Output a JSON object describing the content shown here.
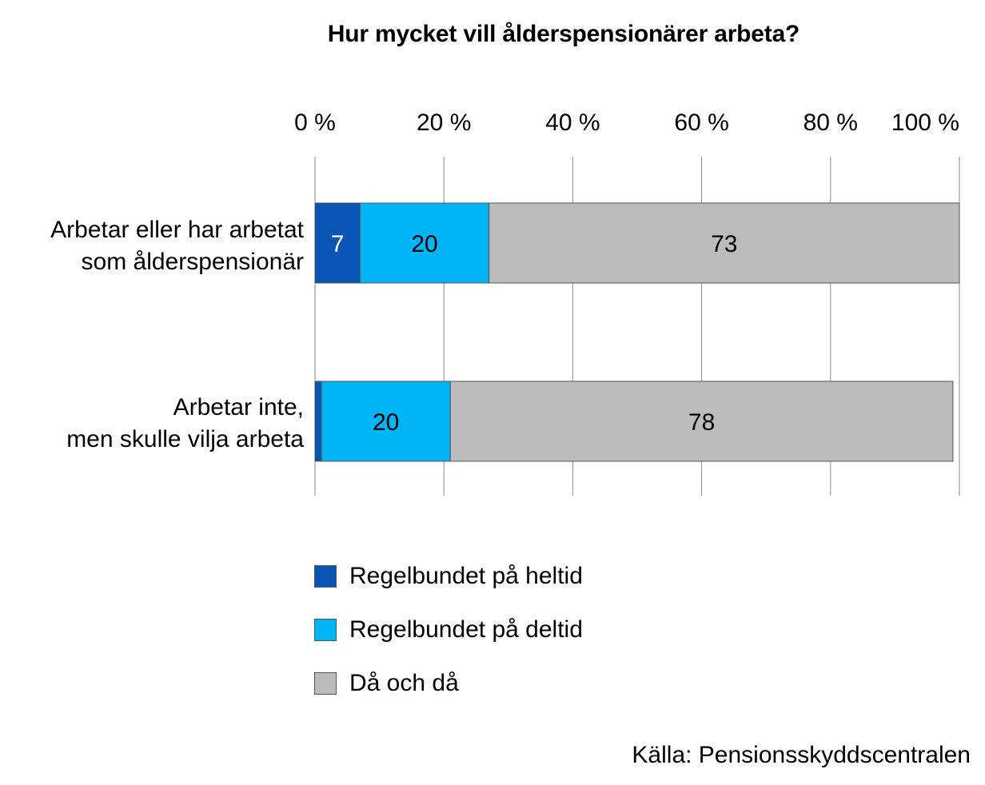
{
  "chart_data": {
    "type": "bar",
    "orientation": "horizontal",
    "stacked": true,
    "title": "Hur mycket vill ålderspensionärer arbeta?",
    "categories": [
      [
        "Arbetar eller har arbetat",
        "som ålderspensionär"
      ],
      [
        "Arbetar inte,",
        "men skulle vilja arbeta"
      ]
    ],
    "series": [
      {
        "name": "Regelbundet på heltid",
        "color": "#0a55b4",
        "values": [
          7,
          1
        ],
        "labels": [
          "7",
          ""
        ]
      },
      {
        "name": "Regelbundet på deltid",
        "color": "#00b4f5",
        "values": [
          20,
          20
        ],
        "labels": [
          "20",
          "20"
        ]
      },
      {
        "name": "Då och då",
        "color": "#bcbcbc",
        "values": [
          73,
          78
        ],
        "labels": [
          "73",
          "78"
        ]
      }
    ],
    "xlim": [
      0,
      100
    ],
    "x_ticks": [
      "0 %",
      "20 %",
      "40 %",
      "60 %",
      "80 %",
      "100 %"
    ],
    "x_axis_position": "top",
    "grid": true,
    "legend_position": "bottom"
  },
  "source_note": "Källa: Pensionsskyddscentralen"
}
